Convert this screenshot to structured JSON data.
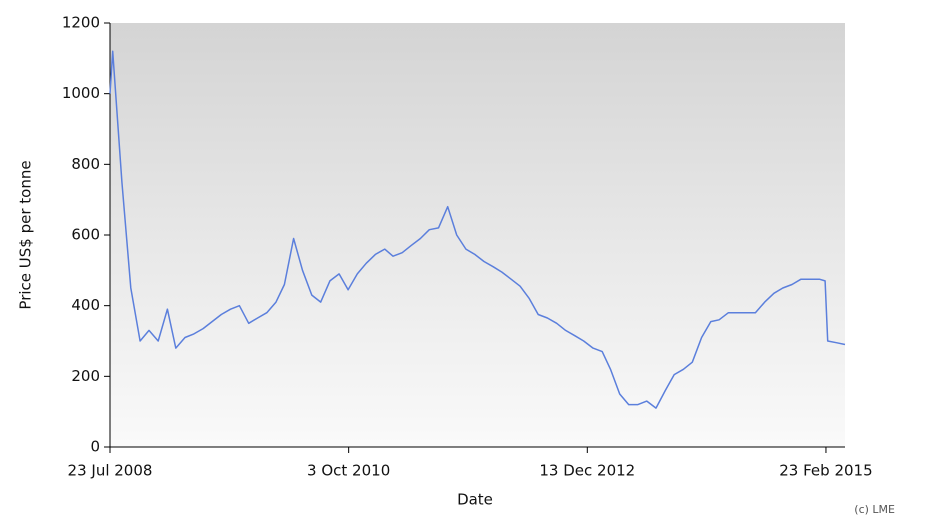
{
  "chart_data": {
    "type": "line",
    "x_label": "Date",
    "y_label": "Price US$ per tonne",
    "annotation": "(c) LME",
    "xlim": [
      "2008-07-23",
      "2015-04-28"
    ],
    "xticks": [
      {
        "value": "2008-07-23",
        "label": "23 Jul 2008"
      },
      {
        "value": "2010-10-03",
        "label": "3 Oct 2010"
      },
      {
        "value": "2012-12-13",
        "label": "13 Dec 2012"
      },
      {
        "value": "2015-02-23",
        "label": "23 Feb 2015"
      }
    ],
    "ylim": [
      0,
      1200
    ],
    "yticks": [
      0,
      200,
      400,
      600,
      800,
      1000,
      1200
    ],
    "x": [
      "2008-07-23",
      "2008-08-01",
      "2008-09-01",
      "2008-10-01",
      "2008-11-01",
      "2008-12-01",
      "2009-01-01",
      "2009-02-01",
      "2009-03-01",
      "2009-04-01",
      "2009-05-01",
      "2009-06-01",
      "2009-07-01",
      "2009-08-01",
      "2009-09-01",
      "2009-10-01",
      "2009-11-01",
      "2009-12-01",
      "2010-01-01",
      "2010-02-01",
      "2010-03-01",
      "2010-04-01",
      "2010-05-01",
      "2010-06-01",
      "2010-07-01",
      "2010-08-01",
      "2010-09-01",
      "2010-10-01",
      "2010-11-01",
      "2010-12-01",
      "2011-01-01",
      "2011-02-01",
      "2011-03-01",
      "2011-04-01",
      "2011-05-01",
      "2011-06-01",
      "2011-07-01",
      "2011-08-01",
      "2011-09-01",
      "2011-10-01",
      "2011-11-01",
      "2011-12-01",
      "2012-01-01",
      "2012-02-01",
      "2012-03-01",
      "2012-04-01",
      "2012-05-01",
      "2012-06-01",
      "2012-07-01",
      "2012-08-01",
      "2012-09-01",
      "2012-10-01",
      "2012-11-01",
      "2012-12-01",
      "2013-01-01",
      "2013-02-01",
      "2013-03-01",
      "2013-04-01",
      "2013-05-01",
      "2013-06-01",
      "2013-07-01",
      "2013-08-01",
      "2013-09-01",
      "2013-10-01",
      "2013-11-01",
      "2013-12-01",
      "2014-01-01",
      "2014-02-01",
      "2014-03-01",
      "2014-04-01",
      "2014-05-01",
      "2014-06-01",
      "2014-07-01",
      "2014-08-01",
      "2014-09-01",
      "2014-10-01",
      "2014-11-01",
      "2014-12-01",
      "2015-01-01",
      "2015-02-01",
      "2015-02-20",
      "2015-03-01",
      "2015-04-01",
      "2015-04-28"
    ],
    "series": [
      {
        "name": "Price",
        "color": "#5b7fdc",
        "values": [
          1000,
          1120,
          750,
          450,
          300,
          330,
          300,
          390,
          280,
          310,
          320,
          335,
          355,
          375,
          390,
          400,
          350,
          365,
          380,
          410,
          460,
          590,
          500,
          430,
          410,
          470,
          490,
          445,
          490,
          520,
          545,
          560,
          540,
          550,
          570,
          590,
          615,
          620,
          680,
          600,
          560,
          545,
          525,
          510,
          495,
          475,
          455,
          420,
          375,
          365,
          350,
          330,
          315,
          300,
          280,
          270,
          220,
          150,
          120,
          120,
          130,
          110,
          160,
          205,
          220,
          240,
          310,
          355,
          360,
          380,
          380,
          380,
          380,
          410,
          435,
          450,
          460,
          475,
          475,
          475,
          470,
          300,
          295,
          290
        ]
      }
    ]
  }
}
